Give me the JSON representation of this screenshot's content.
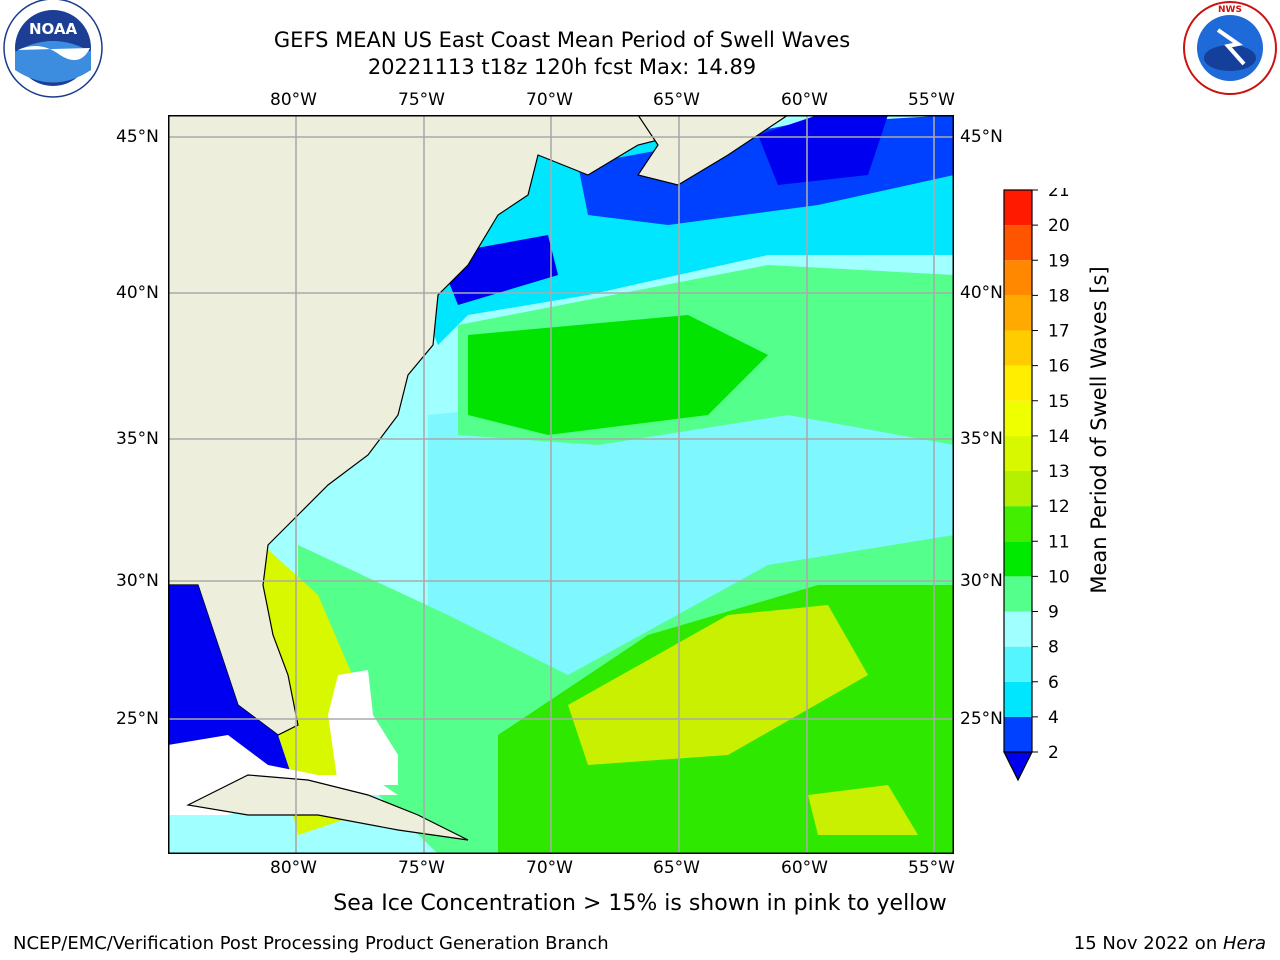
{
  "header": {
    "title_line1": "GEFS MEAN US East Coast Mean Period of Swell Waves",
    "title_line2": "20221113 t18z 120h fcst   Max: 14.89"
  },
  "logos": {
    "left": "NOAA",
    "left_ring_text": "NATIONAL OCEANIC AND ATMOSPHERIC ADMINISTRATION · U.S. DEPARTMENT OF COMMERCE",
    "right_ring_text": "NATIONAL WEATHER SERVICE"
  },
  "map": {
    "lon_labels": [
      "80°W",
      "75°W",
      "70°W",
      "65°W",
      "60°W",
      "55°W"
    ],
    "lat_labels": [
      "45°N",
      "40°N",
      "35°N",
      "30°N",
      "25°N"
    ],
    "colors": {
      "land": "#eeeedd",
      "grid": "#aaaaaa",
      "coast": "#000000"
    }
  },
  "colorbar": {
    "label": "Mean Period of Swell Waves [s]",
    "ticks": [
      "2",
      "4",
      "6",
      "8",
      "9",
      "10",
      "11",
      "12",
      "13",
      "14",
      "15",
      "16",
      "17",
      "18",
      "19",
      "20",
      "21"
    ],
    "colors": [
      "#0040ff",
      "#00e6ff",
      "#55f5ff",
      "#a0ffff",
      "#55ff8c",
      "#00ea00",
      "#44ee00",
      "#b4f000",
      "#d8f800",
      "#f0ff00",
      "#ffee00",
      "#ffcc00",
      "#ffaa00",
      "#ff8800",
      "#ff5500",
      "#ff1a00"
    ],
    "extend_color": "#0000f0"
  },
  "footer": {
    "sea_ice_note": "Sea Ice Concentration > 15% is shown in pink to yellow",
    "left_credit": "NCEP/EMC/Verification Post Processing Product Generation Branch",
    "right_date": "15 Nov 2022 on ",
    "right_machine": "Hera"
  }
}
